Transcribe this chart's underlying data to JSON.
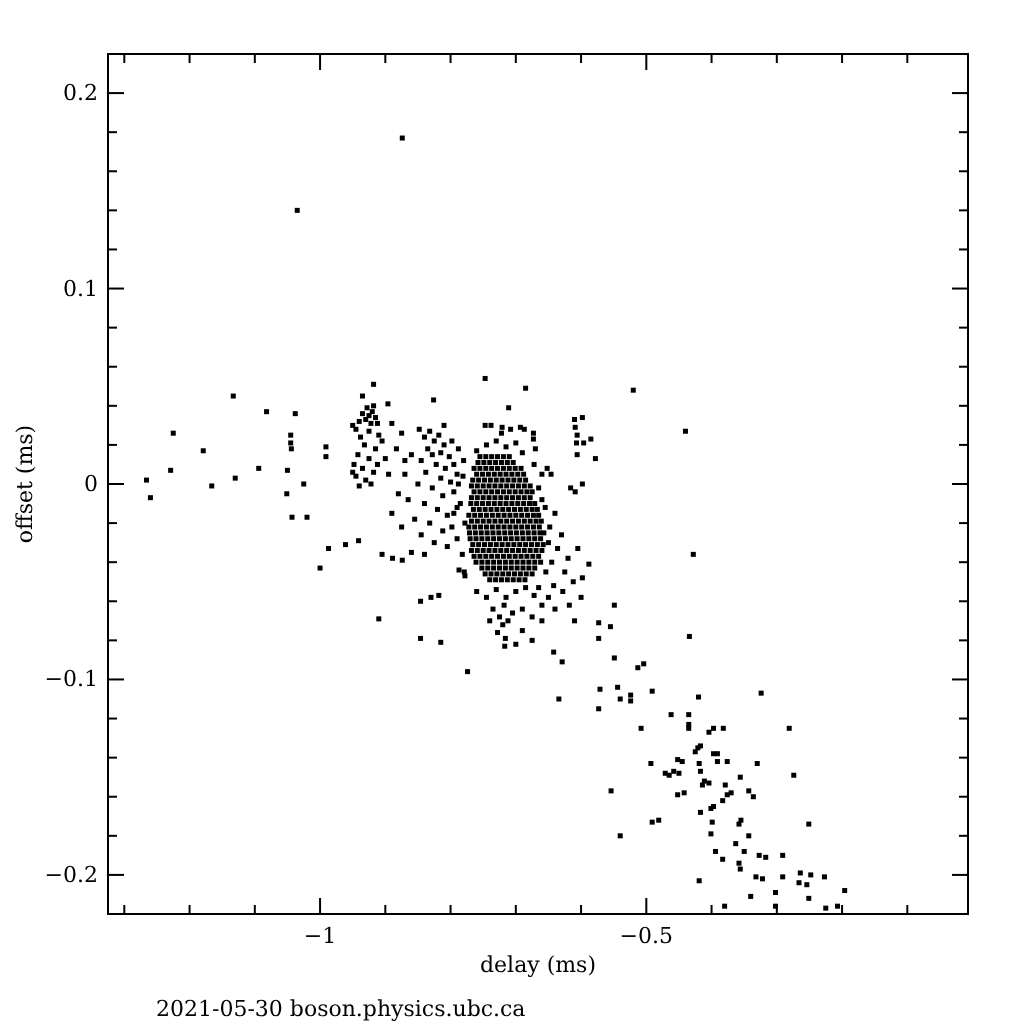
{
  "chart_data": {
    "type": "scatter",
    "xlabel": "delay (ms)",
    "ylabel": "offset (ms)",
    "annotations": [
      "2021-05-30 boson.physics.ubc.ca"
    ],
    "color": "#000000",
    "marker": "square",
    "xlim": [
      -1.325,
      -0.007
    ],
    "ylim": [
      -0.22,
      0.22
    ],
    "xticks": [
      {
        "value": -1.3,
        "label": null
      },
      {
        "value": -1.2,
        "label": null
      },
      {
        "value": -1.1,
        "label": null
      },
      {
        "value": -1,
        "label": "−1"
      },
      {
        "value": -0.9,
        "label": null
      },
      {
        "value": -0.8,
        "label": null
      },
      {
        "value": -0.7,
        "label": null
      },
      {
        "value": -0.6,
        "label": null
      },
      {
        "value": -0.5,
        "label": "−0.5"
      },
      {
        "value": -0.4,
        "label": null
      },
      {
        "value": -0.3,
        "label": null
      },
      {
        "value": -0.2,
        "label": null
      },
      {
        "value": -0.1,
        "label": null
      }
    ],
    "yticks": [
      {
        "value": -0.2,
        "label": "−0.2"
      },
      {
        "value": -0.18,
        "label": null
      },
      {
        "value": -0.16,
        "label": null
      },
      {
        "value": -0.14,
        "label": null
      },
      {
        "value": -0.12,
        "label": null
      },
      {
        "value": -0.1,
        "label": "−0.1"
      },
      {
        "value": -0.08,
        "label": null
      },
      {
        "value": -0.06,
        "label": null
      },
      {
        "value": -0.04,
        "label": null
      },
      {
        "value": -0.02,
        "label": null
      },
      0,
      {
        "value": 0.02,
        "label": null
      },
      {
        "value": 0.04,
        "label": null
      },
      {
        "value": 0.06,
        "label": null
      },
      {
        "value": 0.08,
        "label": null
      },
      0.1,
      {
        "value": 0.12,
        "label": null
      },
      {
        "value": 0.14,
        "label": null
      },
      {
        "value": 0.16,
        "label": null
      },
      {
        "value": 0.18,
        "label": null
      },
      0.2
    ],
    "x": [
      -0.755,
      -0.746,
      -0.737,
      -0.728,
      -0.719,
      -0.71,
      -0.758,
      -0.749,
      -0.74,
      -0.731,
      -0.722,
      -0.713,
      -0.704,
      -0.764,
      -0.755,
      -0.746,
      -0.737,
      -0.728,
      -0.719,
      -0.71,
      -0.701,
      -0.692,
      -0.76,
      -0.751,
      -0.742,
      -0.733,
      -0.724,
      -0.715,
      -0.706,
      -0.697,
      -0.688,
      -0.766,
      -0.757,
      -0.748,
      -0.739,
      -0.73,
      -0.721,
      -0.712,
      -0.703,
      -0.694,
      -0.685,
      -0.768,
      -0.759,
      -0.75,
      -0.741,
      -0.732,
      -0.723,
      -0.714,
      -0.705,
      -0.696,
      -0.687,
      -0.678,
      -0.764,
      -0.755,
      -0.746,
      -0.737,
      -0.728,
      -0.719,
      -0.71,
      -0.701,
      -0.692,
      -0.683,
      -0.675,
      -0.768,
      -0.759,
      -0.75,
      -0.741,
      -0.732,
      -0.723,
      -0.714,
      -0.705,
      -0.696,
      -0.687,
      -0.678,
      -0.769,
      -0.76,
      -0.751,
      -0.742,
      -0.733,
      -0.724,
      -0.715,
      -0.706,
      -0.697,
      -0.688,
      -0.679,
      -0.671,
      -0.765,
      -0.756,
      -0.747,
      -0.738,
      -0.729,
      -0.72,
      -0.711,
      -0.702,
      -0.693,
      -0.684,
      -0.675,
      -0.667,
      -0.772,
      -0.763,
      -0.754,
      -0.745,
      -0.736,
      -0.727,
      -0.718,
      -0.709,
      -0.7,
      -0.691,
      -0.682,
      -0.673,
      -0.665,
      -0.768,
      -0.759,
      -0.75,
      -0.741,
      -0.732,
      -0.723,
      -0.714,
      -0.705,
      -0.696,
      -0.687,
      -0.678,
      -0.669,
      -0.661,
      -0.772,
      -0.763,
      -0.754,
      -0.745,
      -0.736,
      -0.727,
      -0.718,
      -0.709,
      -0.7,
      -0.691,
      -0.682,
      -0.673,
      -0.664,
      -0.771,
      -0.762,
      -0.753,
      -0.744,
      -0.735,
      -0.726,
      -0.717,
      -0.708,
      -0.699,
      -0.69,
      -0.681,
      -0.672,
      -0.663,
      -0.657,
      -0.77,
      -0.761,
      -0.752,
      -0.743,
      -0.734,
      -0.725,
      -0.716,
      -0.707,
      -0.698,
      -0.689,
      -0.68,
      -0.671,
      -0.662,
      -0.766,
      -0.757,
      -0.748,
      -0.739,
      -0.73,
      -0.721,
      -0.712,
      -0.703,
      -0.694,
      -0.685,
      -0.676,
      -0.667,
      -0.658,
      -0.768,
      -0.759,
      -0.75,
      -0.741,
      -0.732,
      -0.723,
      -0.714,
      -0.705,
      -0.696,
      -0.687,
      -0.678,
      -0.669,
      -0.66,
      -0.764,
      -0.755,
      -0.746,
      -0.737,
      -0.728,
      -0.719,
      -0.71,
      -0.701,
      -0.692,
      -0.683,
      -0.674,
      -0.665,
      -0.761,
      -0.752,
      -0.743,
      -0.734,
      -0.725,
      -0.716,
      -0.707,
      -0.698,
      -0.689,
      -0.68,
      -0.671,
      -0.662,
      -0.752,
      -0.743,
      -0.734,
      -0.725,
      -0.716,
      -0.707,
      -0.698,
      -0.689,
      -0.68,
      -0.671,
      -0.747,
      -0.738,
      -0.729,
      -0.72,
      -0.711,
      -0.702,
      -0.693,
      -0.684,
      -0.675,
      -0.74,
      -0.731,
      -0.722,
      -0.713,
      -0.704,
      -0.695,
      -0.686,
      -0.745,
      -0.73,
      -0.715,
      -0.7,
      -0.722,
      -0.69,
      -0.76,
      -0.738,
      -0.708,
      -0.781,
      -0.785,
      -0.778,
      -0.79,
      -0.782,
      -0.779,
      -0.795,
      -0.788,
      -0.665,
      -0.66,
      -0.655,
      -0.65,
      -0.648,
      -0.645,
      -0.64,
      -0.636,
      -0.63,
      -0.625,
      -0.62,
      -0.612,
      -0.642,
      -0.654,
      -0.66,
      -0.652,
      -0.672,
      -0.605,
      -0.598,
      -0.76,
      -0.745,
      -0.73,
      -0.715,
      -0.7,
      -0.685,
      -0.672,
      -0.735,
      -0.725,
      -0.718,
      -0.72,
      -0.712,
      -0.728,
      -0.716,
      -0.69,
      -0.66,
      -0.675,
      -0.705,
      -0.74,
      -0.665,
      -0.65,
      -0.64,
      -0.628,
      -0.618,
      -0.66,
      -0.69,
      -0.7,
      -0.675,
      -0.61,
      -0.6,
      -0.721,
      -0.693,
      -0.687,
      -0.673,
      -0.673,
      -0.67,
      -0.925,
      -0.92,
      -0.93,
      -0.915,
      -0.922,
      -0.928,
      -0.935,
      -0.918,
      -0.912,
      -0.94,
      -0.945,
      -0.925,
      -0.91,
      -0.938,
      -0.95,
      -0.932,
      -0.915,
      -0.942,
      -0.925,
      -0.948,
      -0.935,
      -0.918,
      -0.945,
      -0.93,
      -0.94,
      -0.922,
      -0.95,
      -0.912,
      -0.935,
      -0.905,
      -0.84,
      -0.832,
      -0.825,
      -0.818,
      -0.81,
      -0.835,
      -0.828,
      -0.815,
      -0.802,
      -0.845,
      -0.822,
      -0.808,
      -0.795,
      -0.838,
      -0.815,
      -0.8,
      -0.79,
      -0.85,
      -0.828,
      -0.812,
      -0.795,
      -0.84,
      -0.82,
      -0.805,
      -0.79,
      -0.832,
      -0.812,
      -0.798,
      -0.825,
      -0.805,
      -0.855,
      -0.86,
      -0.848,
      -0.81,
      -0.798,
      -0.788,
      -0.78,
      -0.87,
      -0.865,
      -0.845,
      -0.89,
      -0.875,
      -0.883,
      -0.87,
      -0.895,
      -0.88,
      -0.89,
      -0.875,
      -0.9,
      -0.86,
      -0.874,
      -1.035,
      -1.133,
      -1.225,
      -1.082,
      -1.038,
      -1.179,
      -1.229,
      -1.266,
      -1.26,
      -1.166,
      -1.13,
      -1.094,
      -1.045,
      -1.045,
      -1.044,
      -1.05,
      -1.051,
      -1.025,
      -1.043,
      -1.02,
      -0.991,
      -0.991,
      -0.918,
      -0.896,
      -0.826,
      -0.747,
      -0.685,
      -0.52,
      -0.711,
      -0.747,
      -0.44,
      -0.61,
      -0.598,
      -0.609,
      -0.606,
      -0.607,
      -0.596,
      -0.585,
      -0.578,
      -0.606,
      -0.598,
      -0.616,
      -0.609,
      -0.646,
      -0.428,
      -0.987,
      -0.961,
      -0.941,
      -1,
      -0.905,
      -0.889,
      -0.91,
      -0.846,
      -0.815,
      -0.774,
      -0.874,
      -0.84,
      -0.846,
      -0.83,
      -0.818,
      -0.787,
      -0.778,
      -0.717,
      -0.588,
      -0.549,
      -0.573,
      -0.555,
      -0.573,
      -0.434,
      -0.642,
      -0.629,
      -0.549,
      -0.504,
      -0.513,
      -0.634,
      -0.571,
      -0.544,
      -0.54,
      -0.524,
      -0.524,
      -0.491,
      -0.573,
      -0.42,
      -0.324,
      -0.462,
      -0.435,
      -0.435,
      -0.435,
      -0.397,
      -0.404,
      -0.382,
      -0.281,
      -0.508,
      -0.421,
      -0.417,
      -0.425,
      -0.397,
      -0.391,
      -0.391,
      -0.376,
      -0.493,
      -0.471,
      -0.465,
      -0.458,
      -0.445,
      -0.452,
      -0.45,
      -0.419,
      -0.417,
      -0.33,
      -0.414,
      -0.411,
      -0.404,
      -0.379,
      -0.356,
      -0.554,
      -0.274,
      -0.37,
      -0.376,
      -0.383,
      -0.397,
      -0.401,
      -0.343,
      -0.336,
      -0.417,
      -0.442,
      -0.452,
      -0.491,
      -0.481,
      -0.355,
      -0.358,
      -0.251,
      -0.399,
      -0.401,
      -0.54,
      -0.363,
      -0.343,
      -0.35,
      -0.394,
      -0.383,
      -0.327,
      -0.317,
      -0.291,
      -0.358,
      -0.356,
      -0.332,
      -0.322,
      -0.291,
      -0.264,
      -0.248,
      -0.227,
      -0.266,
      -0.254,
      -0.419,
      -0.34,
      -0.302,
      -0.251,
      -0.196,
      -0.38,
      -0.302,
      -0.225,
      -0.207
    ],
    "values": [
      0.014,
      0.014,
      0.014,
      0.014,
      0.014,
      0.014,
      0.011,
      0.011,
      0.011,
      0.011,
      0.011,
      0.011,
      0.011,
      0.008,
      0.008,
      0.008,
      0.008,
      0.008,
      0.008,
      0.008,
      0.008,
      0.008,
      0.005,
      0.005,
      0.005,
      0.005,
      0.005,
      0.005,
      0.005,
      0.005,
      0.005,
      0.002,
      0.002,
      0.002,
      0.002,
      0.002,
      0.002,
      0.002,
      0.002,
      0.002,
      0.002,
      -0.001,
      -0.001,
      -0.001,
      -0.001,
      -0.001,
      -0.001,
      -0.001,
      -0.001,
      -0.001,
      -0.001,
      -0.001,
      -0.004,
      -0.004,
      -0.004,
      -0.004,
      -0.004,
      -0.004,
      -0.004,
      -0.004,
      -0.004,
      -0.004,
      -0.004,
      -0.007,
      -0.007,
      -0.007,
      -0.007,
      -0.007,
      -0.007,
      -0.007,
      -0.007,
      -0.007,
      -0.007,
      -0.007,
      -0.01,
      -0.01,
      -0.01,
      -0.01,
      -0.01,
      -0.01,
      -0.01,
      -0.01,
      -0.01,
      -0.01,
      -0.01,
      -0.01,
      -0.013,
      -0.013,
      -0.013,
      -0.013,
      -0.013,
      -0.013,
      -0.013,
      -0.013,
      -0.013,
      -0.013,
      -0.013,
      -0.013,
      -0.016,
      -0.016,
      -0.016,
      -0.016,
      -0.016,
      -0.016,
      -0.016,
      -0.016,
      -0.016,
      -0.016,
      -0.016,
      -0.016,
      -0.016,
      -0.019,
      -0.019,
      -0.019,
      -0.019,
      -0.019,
      -0.019,
      -0.019,
      -0.019,
      -0.019,
      -0.019,
      -0.019,
      -0.019,
      -0.019,
      -0.022,
      -0.022,
      -0.022,
      -0.022,
      -0.022,
      -0.022,
      -0.022,
      -0.022,
      -0.022,
      -0.022,
      -0.022,
      -0.022,
      -0.022,
      -0.025,
      -0.025,
      -0.025,
      -0.025,
      -0.025,
      -0.025,
      -0.025,
      -0.025,
      -0.025,
      -0.025,
      -0.025,
      -0.025,
      -0.025,
      -0.025,
      -0.028,
      -0.028,
      -0.028,
      -0.028,
      -0.028,
      -0.028,
      -0.028,
      -0.028,
      -0.028,
      -0.028,
      -0.028,
      -0.028,
      -0.028,
      -0.031,
      -0.031,
      -0.031,
      -0.031,
      -0.031,
      -0.031,
      -0.031,
      -0.031,
      -0.031,
      -0.031,
      -0.031,
      -0.031,
      -0.031,
      -0.034,
      -0.034,
      -0.034,
      -0.034,
      -0.034,
      -0.034,
      -0.034,
      -0.034,
      -0.034,
      -0.034,
      -0.034,
      -0.034,
      -0.034,
      -0.037,
      -0.037,
      -0.037,
      -0.037,
      -0.037,
      -0.037,
      -0.037,
      -0.037,
      -0.037,
      -0.037,
      -0.037,
      -0.037,
      -0.04,
      -0.04,
      -0.04,
      -0.04,
      -0.04,
      -0.04,
      -0.04,
      -0.04,
      -0.04,
      -0.04,
      -0.04,
      -0.04,
      -0.043,
      -0.043,
      -0.043,
      -0.043,
      -0.043,
      -0.043,
      -0.043,
      -0.043,
      -0.043,
      -0.043,
      -0.046,
      -0.046,
      -0.046,
      -0.046,
      -0.046,
      -0.046,
      -0.046,
      -0.046,
      -0.046,
      -0.049,
      -0.049,
      -0.049,
      -0.049,
      -0.049,
      -0.049,
      -0.049,
      0.02,
      0.022,
      0.019,
      0.021,
      0.026,
      0.016,
      0.017,
      0.03,
      0.028,
      0.004,
      -0.01,
      -0.02,
      -0.028,
      -0.036,
      -0.045,
      -0.015,
      0,
      -0.002,
      -0.008,
      -0.012,
      -0.03,
      -0.022,
      -0.04,
      -0.015,
      -0.033,
      -0.026,
      -0.045,
      -0.038,
      -0.05,
      -0.052,
      -0.045,
      0.005,
      0.008,
      0.01,
      -0.033,
      -0.048,
      -0.055,
      -0.058,
      -0.054,
      -0.058,
      -0.055,
      -0.053,
      -0.057,
      -0.064,
      -0.068,
      -0.062,
      -0.072,
      -0.07,
      -0.076,
      -0.079,
      -0.064,
      -0.062,
      -0.068,
      -0.066,
      -0.07,
      -0.053,
      -0.058,
      -0.064,
      -0.055,
      -0.062,
      -0.07,
      -0.075,
      -0.082,
      -0.08,
      -0.07,
      -0.058,
      0.029,
      0.029,
      0.028,
      0.026,
      0.023,
      0.018,
      0.035,
      0.037,
      0.033,
      0.034,
      0.031,
      0.039,
      0.036,
      0.04,
      0.031,
      0.032,
      0.028,
      0.027,
      0.025,
      0.024,
      0.03,
      0.02,
      0.018,
      0.015,
      0.013,
      0.01,
      0.008,
      0.006,
      0.004,
      0.002,
      -0.001,
      0,
      0.006,
      0.01,
      0.045,
      0.022,
      0.024,
      0.027,
      0.022,
      0.025,
      0.02,
      0.018,
      0.015,
      0.016,
      0.014,
      0.012,
      0.01,
      0.008,
      0.01,
      0.006,
      0.003,
      0.001,
      0.005,
      0,
      -0.002,
      -0.006,
      -0.004,
      -0.01,
      -0.013,
      -0.016,
      -0.012,
      -0.02,
      -0.024,
      -0.022,
      -0.03,
      -0.032,
      -0.018,
      0.015,
      0.028,
      0.03,
      0.022,
      0.018,
      0.012,
      0.005,
      -0.008,
      -0.026,
      0.031,
      0.026,
      0.018,
      0.012,
      0.005,
      -0.005,
      -0.015,
      -0.022,
      0.013,
      -0.035,
      0.177,
      0.14,
      0.045,
      0.026,
      0.037,
      0.036,
      0.017,
      0.007,
      0.002,
      -0.007,
      -0.001,
      0.003,
      0.008,
      0.025,
      0.021,
      0.018,
      0.007,
      -0.005,
      0,
      -0.017,
      -0.017,
      0.019,
      0.014,
      0.051,
      0.041,
      0.043,
      0.054,
      0.049,
      0.048,
      0.039,
      0.03,
      0.027,
      0.033,
      0.034,
      0.029,
      0.025,
      0.021,
      0.021,
      0.023,
      0.013,
      0.015,
      0,
      -0.002,
      -0.004,
      0.005,
      -0.036,
      -0.033,
      -0.031,
      -0.029,
      -0.043,
      -0.036,
      -0.038,
      -0.069,
      -0.079,
      -0.081,
      -0.096,
      -0.039,
      -0.036,
      -0.06,
      -0.058,
      -0.057,
      -0.044,
      -0.047,
      -0.083,
      -0.041,
      -0.062,
      -0.071,
      -0.073,
      -0.079,
      -0.078,
      -0.086,
      -0.091,
      -0.089,
      -0.092,
      -0.094,
      -0.11,
      -0.105,
      -0.104,
      -0.11,
      -0.108,
      -0.111,
      -0.106,
      -0.115,
      -0.109,
      -0.107,
      -0.118,
      -0.118,
      -0.123,
      -0.125,
      -0.125,
      -0.127,
      -0.125,
      -0.125,
      -0.125,
      -0.135,
      -0.134,
      -0.137,
      -0.138,
      -0.138,
      -0.142,
      -0.142,
      -0.143,
      -0.148,
      -0.149,
      -0.147,
      -0.142,
      -0.141,
      -0.148,
      -0.143,
      -0.147,
      -0.143,
      -0.154,
      -0.152,
      -0.153,
      -0.154,
      -0.15,
      -0.157,
      -0.149,
      -0.158,
      -0.159,
      -0.162,
      -0.165,
      -0.166,
      -0.157,
      -0.16,
      -0.168,
      -0.158,
      -0.159,
      -0.173,
      -0.172,
      -0.172,
      -0.174,
      -0.174,
      -0.173,
      -0.179,
      -0.18,
      -0.184,
      -0.18,
      -0.188,
      -0.188,
      -0.192,
      -0.19,
      -0.191,
      -0.19,
      -0.194,
      -0.197,
      -0.201,
      -0.202,
      -0.201,
      -0.199,
      -0.2,
      -0.201,
      -0.204,
      -0.205,
      -0.203,
      -0.211,
      -0.209,
      -0.212,
      -0.208,
      -0.216,
      -0.216,
      -0.217,
      -0.216
    ]
  }
}
